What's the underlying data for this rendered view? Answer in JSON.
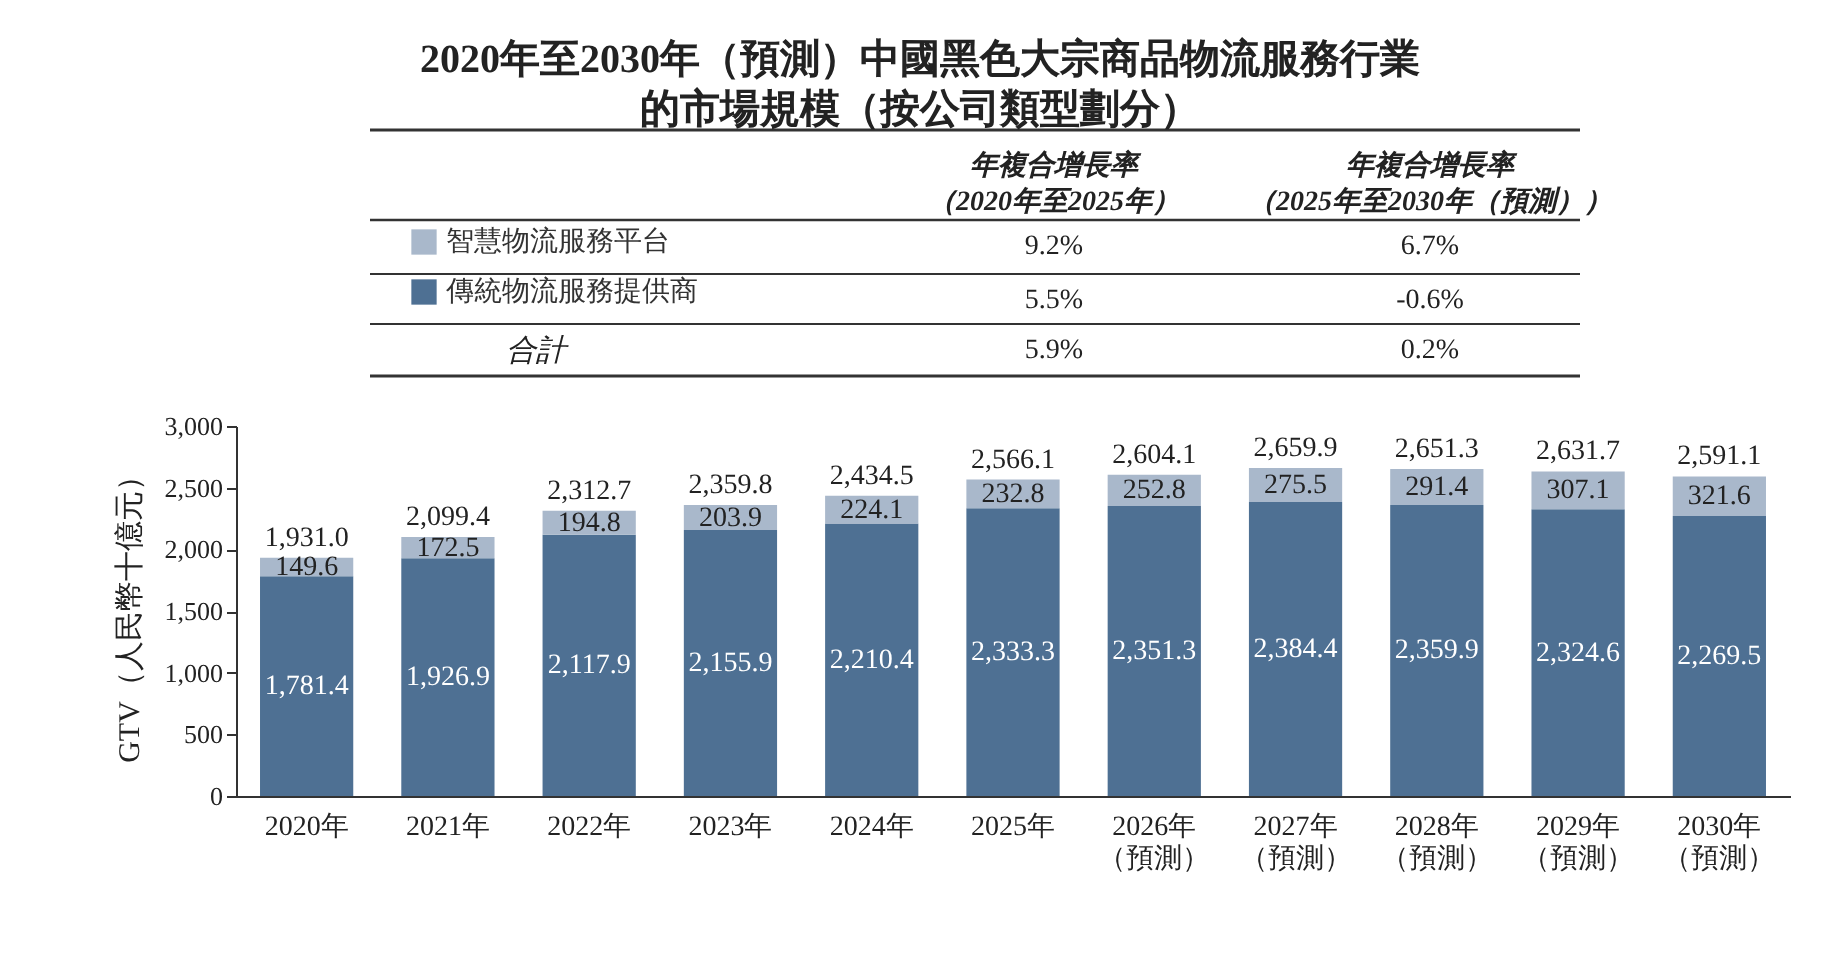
{
  "chart_data": {
    "type": "bar",
    "title": "2020年至2030年（預測）中國黑色大宗商品物流服務行業的市場規模（按公司類型劃分）",
    "ylabel": "GTV（人民幣十億元）",
    "categories": [
      "2020年",
      "2021年",
      "2022年",
      "2023年",
      "2024年",
      "2025年",
      "2026年（預測）",
      "2027年（預測）",
      "2028年（預測）",
      "2029年（預測）",
      "2030年（預測）"
    ],
    "stacked": true,
    "series": [
      {
        "name": "傳統物流服務提供商",
        "color": "#4e7093",
        "values": [
          1781.4,
          1926.9,
          2117.9,
          2155.9,
          2210.4,
          2333.3,
          2351.3,
          2384.4,
          2359.9,
          2324.6,
          2269.5
        ],
        "value_labels": [
          "1,781.4",
          "1,926.9",
          "2,117.9",
          "2,155.9",
          "2,210.4",
          "2,333.3",
          "2,351.3",
          "2,384.4",
          "2,359.9",
          "2,324.6",
          "2,269.5"
        ]
      },
      {
        "name": "智慧物流服務平台",
        "color": "#a9b8cb",
        "values": [
          149.6,
          172.5,
          194.8,
          203.9,
          224.1,
          232.8,
          252.8,
          275.5,
          291.4,
          307.1,
          321.6
        ],
        "value_labels": [
          "149.6",
          "172.5",
          "194.8",
          "203.9",
          "224.1",
          "232.8",
          "252.8",
          "275.5",
          "291.4",
          "307.1",
          "321.6"
        ]
      }
    ],
    "totals": [
      "1,931.0",
      "2,099.4",
      "2,312.7",
      "2,359.8",
      "2,434.5",
      "2,566.1",
      "2,604.1",
      "2,659.9",
      "2,651.3",
      "2,631.7",
      "2,591.1"
    ],
    "ylim": [
      0,
      3000
    ],
    "yticks": [
      {
        "value": 0,
        "label": "0"
      },
      {
        "value": 500,
        "label": "500"
      },
      {
        "value": 1000,
        "label": "1,000"
      },
      {
        "value": 1500,
        "label": "1,500"
      },
      {
        "value": 2000,
        "label": "2,000"
      },
      {
        "value": 2500,
        "label": "2,500"
      },
      {
        "value": 3000,
        "label": "3,000"
      }
    ],
    "grid": false,
    "legend": "top",
    "annotations": [
      "年複合增長率（2020年至2025年）",
      "年複合增長率（2025年至2030年（預測））",
      "9.2%",
      "6.7%",
      "5.5%",
      "-0.6%",
      "合計",
      "5.9%",
      "0.2%"
    ]
  }
}
